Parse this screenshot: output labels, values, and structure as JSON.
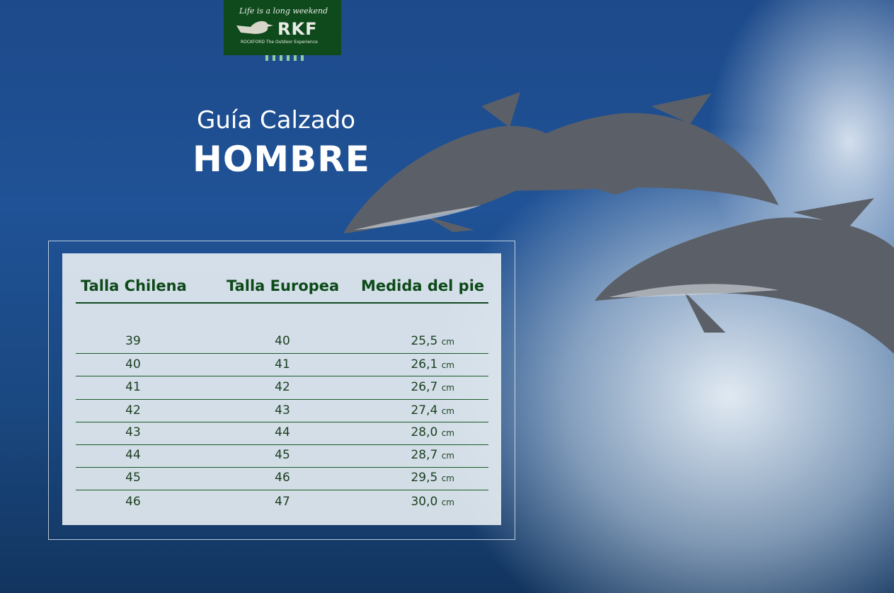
{
  "logo": {
    "tagline": "Life is a long weekend",
    "brand": "RKF",
    "subtitle": "ROCKFORD The Outdoor Experience"
  },
  "title": {
    "line1": "Guía Calzado",
    "line2": "HOMBRE"
  },
  "table": {
    "headers": [
      "Talla Chilena",
      "Talla Europea",
      "Medida del pie"
    ],
    "unit": "cm",
    "rows": [
      {
        "cl": "39",
        "eu": "40",
        "pie": "25,5"
      },
      {
        "cl": "40",
        "eu": "41",
        "pie": "26,1"
      },
      {
        "cl": "41",
        "eu": "42",
        "pie": "26,7"
      },
      {
        "cl": "42",
        "eu": "43",
        "pie": "27,4"
      },
      {
        "cl": "43",
        "eu": "44",
        "pie": "28,0"
      },
      {
        "cl": "44",
        "eu": "45",
        "pie": "28,7"
      },
      {
        "cl": "45",
        "eu": "46",
        "pie": "29,5"
      },
      {
        "cl": "46",
        "eu": "47",
        "pie": "30,0"
      }
    ]
  }
}
